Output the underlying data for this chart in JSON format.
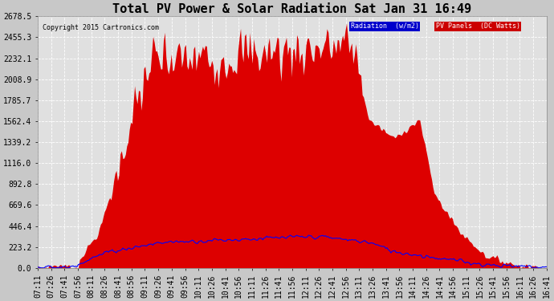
{
  "title": "Total PV Power & Solar Radiation Sat Jan 31 16:49",
  "copyright": "Copyright 2015 Cartronics.com",
  "legend_label1": "Radiation  (w/m2)",
  "legend_label2": "PV Panels  (DC Watts)",
  "ylim": [
    0,
    2678.5
  ],
  "yticks": [
    0.0,
    223.2,
    446.4,
    669.6,
    892.8,
    1116.0,
    1339.2,
    1562.4,
    1785.7,
    2008.9,
    2232.1,
    2455.3,
    2678.5
  ],
  "background_color": "#c8c8c8",
  "plot_bg_color": "#e0e0e0",
  "grid_color": "#ffffff",
  "area_color": "#dd0000",
  "line_color": "#0000ff",
  "title_fontsize": 11,
  "tick_fontsize": 7,
  "x_tick_labels": [
    "07:11",
    "07:26",
    "07:41",
    "07:56",
    "08:11",
    "08:26",
    "08:41",
    "08:56",
    "09:11",
    "09:26",
    "09:41",
    "09:56",
    "10:11",
    "10:26",
    "10:41",
    "10:56",
    "11:11",
    "11:26",
    "11:41",
    "11:56",
    "12:11",
    "12:26",
    "12:41",
    "12:56",
    "13:11",
    "13:26",
    "13:41",
    "13:56",
    "14:11",
    "14:26",
    "14:41",
    "14:56",
    "15:11",
    "15:26",
    "15:41",
    "15:56",
    "16:11",
    "16:26",
    "16:41"
  ]
}
